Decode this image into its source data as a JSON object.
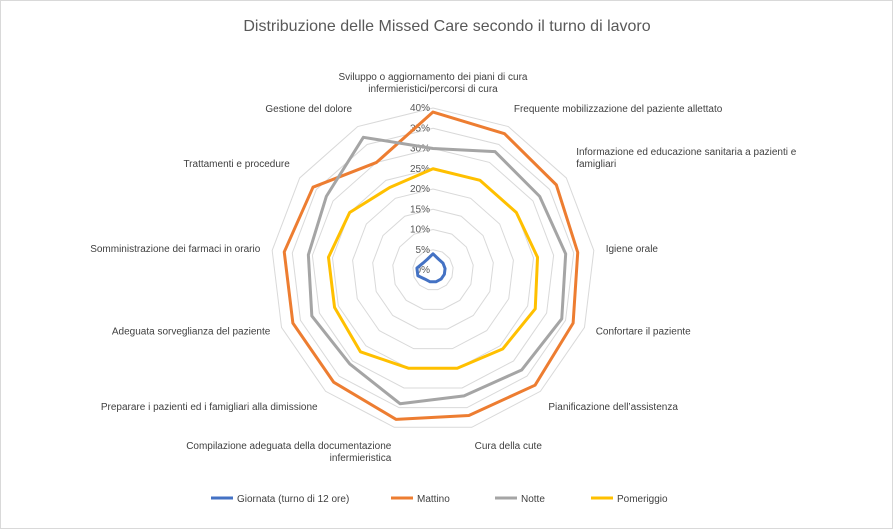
{
  "chart_data": {
    "type": "radar",
    "title": "Distribuzione delle Missed Care secondo il turno di lavoro",
    "categories": [
      [
        "Sviluppo o aggiornamento dei piani di cura",
        "infermieristici/percorsi di cura"
      ],
      [
        "Frequente mobilizzazione del paziente allettato"
      ],
      [
        "Informazione ed educazione sanitaria a pazienti e",
        "famigliari"
      ],
      [
        "Igiene orale"
      ],
      [
        "Confortare il paziente"
      ],
      [
        "Pianificazione dell’assistenza"
      ],
      [
        "Cura della cute"
      ],
      [
        "Compilazione adeguata della documentazione",
        "infermieristica"
      ],
      [
        "Preparare i pazienti ed i famigliari alla dimissione"
      ],
      [
        "Adeguata sorveglianza del paziente"
      ],
      [
        "Somministrazione dei farmaci in orario"
      ],
      [
        "Trattamenti e procedure"
      ],
      [
        "Gestione del dolore"
      ]
    ],
    "ticks": [
      "0%",
      "5%",
      "10%",
      "15%",
      "20%",
      "25%",
      "30%",
      "35%",
      "40%"
    ],
    "rmax": 40,
    "series": [
      {
        "name": "Giornata (turno di 12 ore)",
        "color": "#4472C4",
        "values": [
          4,
          3,
          3,
          3,
          3,
          3,
          3,
          3,
          3,
          4,
          4,
          3,
          3
        ]
      },
      {
        "name": "Mattino",
        "color": "#ED7D31",
        "values": [
          39,
          38,
          37,
          36,
          37,
          38,
          37,
          38,
          37,
          37,
          37,
          36,
          30
        ]
      },
      {
        "name": "Notte",
        "color": "#A5A5A5",
        "values": [
          30,
          33,
          32,
          33,
          34,
          33,
          32,
          34,
          31,
          32,
          31,
          32,
          37
        ]
      },
      {
        "name": "Pomeriggio",
        "color": "#FFC000",
        "values": [
          25,
          25,
          25,
          26,
          27,
          26,
          25,
          25,
          27,
          26,
          26,
          25,
          23
        ]
      }
    ],
    "legend_position": "bottom",
    "grid": true
  }
}
